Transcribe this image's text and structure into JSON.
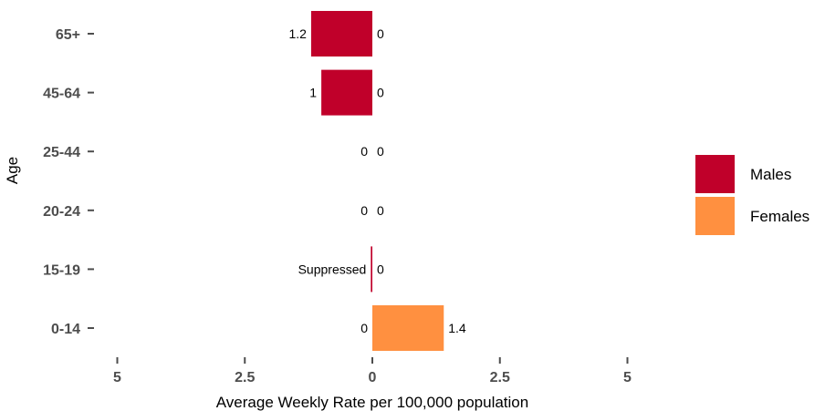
{
  "chart_data": {
    "type": "bar",
    "orientation": "horizontal-diverging",
    "categories": [
      "65+",
      "45-64",
      "25-44",
      "20-24",
      "15-19",
      "0-14"
    ],
    "series": [
      {
        "name": "Males",
        "color": "#c0002a",
        "side": "left",
        "values": [
          1.2,
          1.0,
          0,
          0,
          0.03,
          0
        ],
        "labels": [
          "1.2",
          "1",
          "0",
          "0",
          "Suppressed",
          "0"
        ]
      },
      {
        "name": "Females",
        "color": "#ff9040",
        "side": "right",
        "values": [
          0,
          0,
          0,
          0,
          0,
          1.4
        ],
        "labels": [
          "0",
          "0",
          "0",
          "0",
          "0",
          "1.4"
        ]
      }
    ],
    "xlabel": "Average Weekly Rate per 100,000 population",
    "ylabel": "Age",
    "xlim": [
      -5,
      5
    ],
    "x_ticks": [
      -5,
      -2.5,
      0,
      2.5,
      5
    ],
    "x_tick_labels": [
      "5",
      "2.5",
      "0",
      "2.5",
      "5"
    ],
    "grid": false,
    "legend_position": "right"
  }
}
